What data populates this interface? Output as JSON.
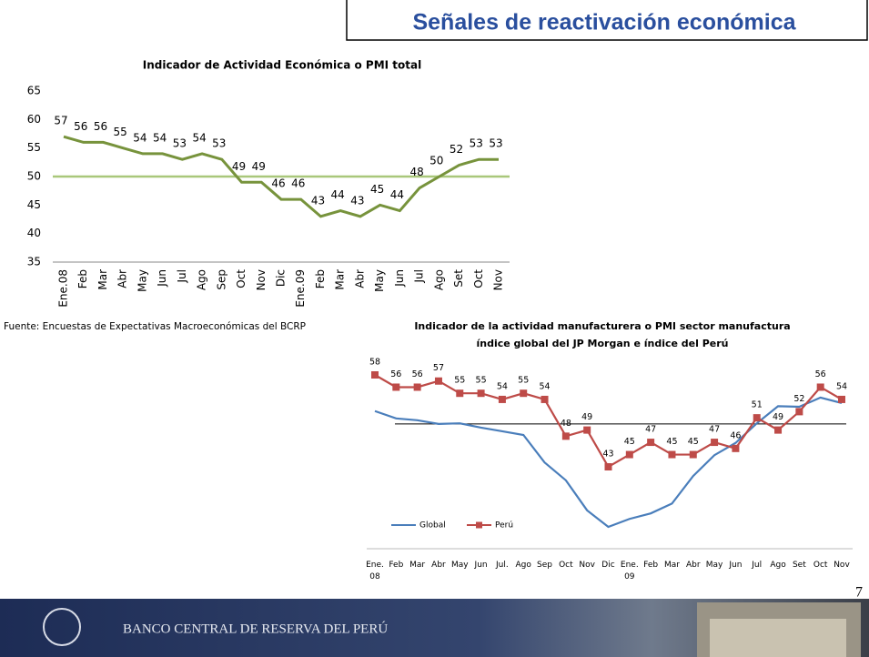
{
  "header": {
    "title": "Señales de reactivación económica"
  },
  "chart_data": [
    {
      "type": "line",
      "title": "Indicador de Actividad Económica o PMI total",
      "categories": [
        "Ene.08",
        "Feb",
        "Mar",
        "Abr",
        "May",
        "Jun",
        "Jul",
        "Ago",
        "Sep",
        "Oct",
        "Nov",
        "Dic",
        "Ene.09",
        "Feb",
        "Mar",
        "Abr",
        "May",
        "Jun",
        "Jul",
        "Ago",
        "Set",
        "Oct",
        "Nov"
      ],
      "values": [
        57,
        56,
        56,
        55,
        54,
        54,
        53,
        54,
        53,
        49,
        49,
        46,
        46,
        43,
        44,
        43,
        45,
        44,
        48,
        50,
        52,
        53,
        53
      ],
      "color": "#77933c",
      "data_labels": true,
      "reference_line": {
        "value": 50,
        "color": "#a9c77a"
      },
      "ylim": [
        35,
        65
      ],
      "yticks": [
        35,
        40,
        45,
        50,
        55,
        60,
        65
      ]
    },
    {
      "type": "line",
      "title": "Indicador de la actividad manufacturera o PMI sector manufactura",
      "subtitle": "índice global del JP Morgan  e índice del Perú",
      "categories": [
        "Ene. 08",
        "Feb",
        "Mar",
        "Abr",
        "May",
        "Jun",
        "Jul.",
        "Ago",
        "Sep",
        "Oct",
        "Nov",
        "Dic",
        "Ene. 09",
        "Feb",
        "Mar",
        "Abr",
        "May",
        "Jun",
        "Jul",
        "Ago",
        "Set",
        "Oct",
        "Nov"
      ],
      "series": [
        {
          "name": "Global",
          "color": "#4a7ebb",
          "markers": false,
          "values": [
            52.1,
            50.9,
            50.6,
            50.0,
            50.1,
            49.4,
            48.8,
            48.2,
            43.7,
            40.8,
            35.9,
            33.2,
            34.5,
            35.4,
            37.0,
            41.5,
            44.9,
            46.9,
            50.1,
            52.9,
            52.8,
            54.3,
            53.4
          ]
        },
        {
          "name": "Perú",
          "color": "#be4b48",
          "markers": true,
          "data_labels": true,
          "values": [
            58,
            56,
            56,
            57,
            55,
            55,
            54,
            55,
            54,
            48,
            49,
            43,
            45,
            47,
            45,
            45,
            47,
            46,
            51,
            49,
            52,
            56,
            54
          ]
        }
      ],
      "reference_line": {
        "value": 50,
        "color": "#000000"
      },
      "legend": "lower left"
    }
  ],
  "source": "Fuente: Encuestas de Expectativas Macroeconómicas del BCRP",
  "page_number": 7,
  "footer": {
    "institution": "BANCO CENTRAL DE RESERVA DEL PERÚ"
  }
}
